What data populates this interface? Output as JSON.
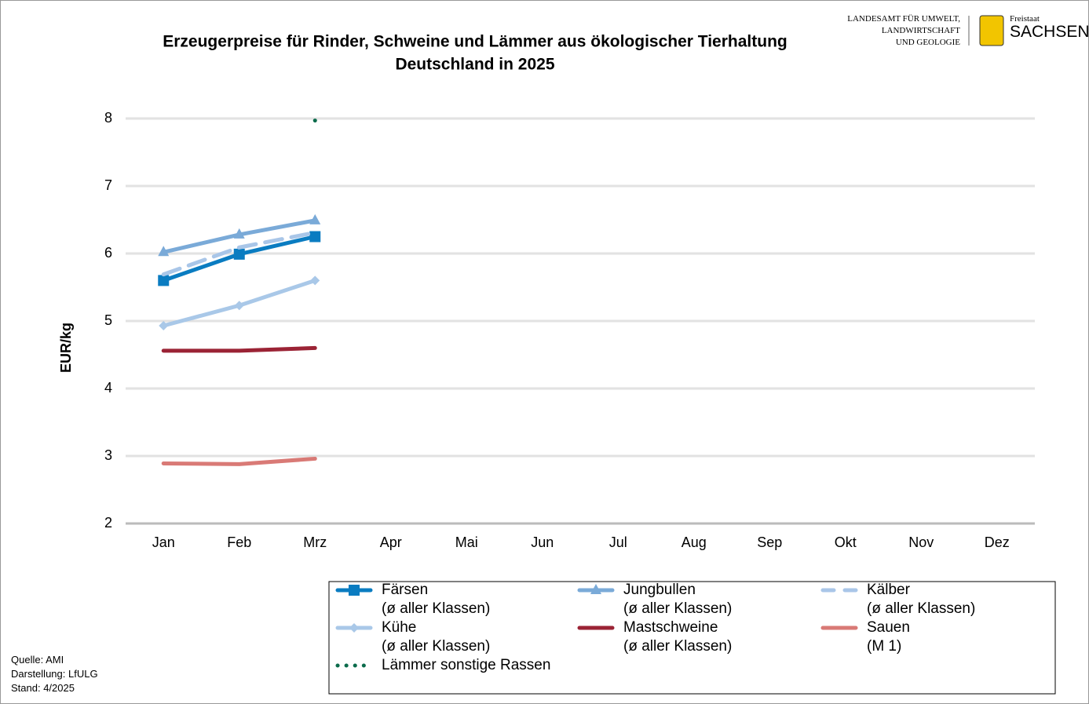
{
  "chart_data": {
    "type": "line",
    "title": "Erzeugerpreise für Rinder, Schweine und Lämmer aus ökologischer Tierhaltung",
    "subtitle": "Deutschland in 2025",
    "y_label": "EUR/kg",
    "categories": [
      "Jan",
      "Feb",
      "Mrz",
      "Apr",
      "Mai",
      "Jun",
      "Jul",
      "Aug",
      "Sep",
      "Okt",
      "Nov",
      "Dez"
    ],
    "ylim": [
      2,
      8
    ],
    "yticks": [
      2,
      3,
      4,
      5,
      6,
      7,
      8
    ],
    "grid": true,
    "legend": "bottom",
    "series": [
      {
        "name": "Färsen\n(ø aller Klassen)",
        "color": "#0a7cc1",
        "marker": "square",
        "values": [
          5.6,
          5.99,
          6.25,
          null,
          null,
          null,
          null,
          null,
          null,
          null,
          null,
          null
        ]
      },
      {
        "name": "Jungbullen\n(ø aller Klassen)",
        "color": "#7aaad8",
        "marker": "triangle",
        "values": [
          6.02,
          6.28,
          6.49,
          null,
          null,
          null,
          null,
          null,
          null,
          null,
          null,
          null
        ]
      },
      {
        "name": "Kälber\n(ø aller Klassen)",
        "color": "#a9c6e8",
        "dash": "dashed",
        "values": [
          5.69,
          6.09,
          6.31,
          null,
          null,
          null,
          null,
          null,
          null,
          null,
          null,
          null
        ]
      },
      {
        "name": "Kühe\n(ø aller Klassen)",
        "color": "#a9c8e8",
        "marker": "diamond",
        "values": [
          4.93,
          5.23,
          5.6,
          null,
          null,
          null,
          null,
          null,
          null,
          null,
          null,
          null
        ]
      },
      {
        "name": "Mastschweine\n(ø aller Klassen)",
        "color": "#9b2335",
        "values": [
          4.56,
          4.56,
          4.6,
          null,
          null,
          null,
          null,
          null,
          null,
          null,
          null,
          null
        ]
      },
      {
        "name": "Sauen\n(M 1)",
        "color": "#d97a76",
        "values": [
          2.89,
          2.88,
          2.96,
          null,
          null,
          null,
          null,
          null,
          null,
          null,
          null,
          null
        ]
      },
      {
        "name": "Lämmer sonstige Rassen",
        "color": "#0b6b4b",
        "dash": "dotted",
        "values": [
          null,
          null,
          7.97,
          null,
          null,
          null,
          null,
          null,
          null,
          null,
          null,
          null
        ]
      }
    ]
  },
  "logo": {
    "agency": "LANDESAMT FÜR UMWELT,\nLANDWIRTSCHAFT\nUND GEOLOGIE",
    "state_small": "Freistaat",
    "state": "SACHSEN"
  },
  "footer": [
    "Quelle:  AMI",
    "Darstellung:  LfULG",
    "Stand:  4/2025"
  ]
}
